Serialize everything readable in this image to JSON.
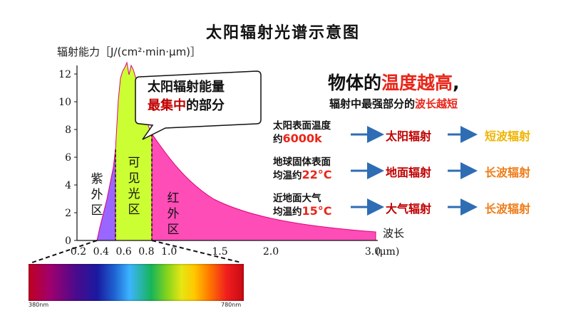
{
  "title": "太阳辐射光谱示意图",
  "ylabel": "辐射能力［J/(cm²·min·μm)］",
  "xlabel": "波长",
  "x_unit": "(μm)",
  "y_ticks": [
    "0",
    "2",
    "4",
    "6",
    "8",
    "10",
    "12"
  ],
  "x_ticks": [
    "0.2",
    "0.4",
    "0.6",
    "0.8",
    "1.0",
    "1.5",
    "2.0",
    "3.0"
  ],
  "regions": {
    "uv": [
      "紫",
      "外",
      "区"
    ],
    "visible": [
      "可",
      "见",
      "光",
      "区"
    ],
    "ir": [
      "红",
      "外",
      "区"
    ]
  },
  "callout": {
    "line1": "太阳辐射能量",
    "line2_red": "最集中",
    "line2_rest": "的部分"
  },
  "headline": {
    "part1": "物体的",
    "part2_red": "温度越高",
    "part3": ","
  },
  "subline": {
    "part1": "辐射中最强部分的",
    "part2_red": "波长越短"
  },
  "rows": [
    {
      "label1": "太阳表面温度",
      "label2_prefix": "约",
      "value": "6000k",
      "mid": "太阳辐射",
      "end": "短波辐射",
      "end_color": "#f0b400"
    },
    {
      "label1": "地球固体表面",
      "label2_prefix": "均温约",
      "value": "22°C",
      "mid": "地面辐射",
      "end": "长波辐射",
      "end_color": "#ee7d1a"
    },
    {
      "label1": "近地面大气",
      "label2_prefix": "均温约",
      "value": "15°C",
      "mid": "大气辐射",
      "end": "长波辐射",
      "end_color": "#ee7d1a"
    }
  ],
  "spectrum": {
    "left_label": "380nm",
    "right_label": "780nm"
  },
  "colors": {
    "uv": "#9966ff",
    "visible": "#ccff33",
    "ir": "#ff4db8",
    "arrow": "#2e6db4",
    "accent_red": "#e8261a"
  }
}
